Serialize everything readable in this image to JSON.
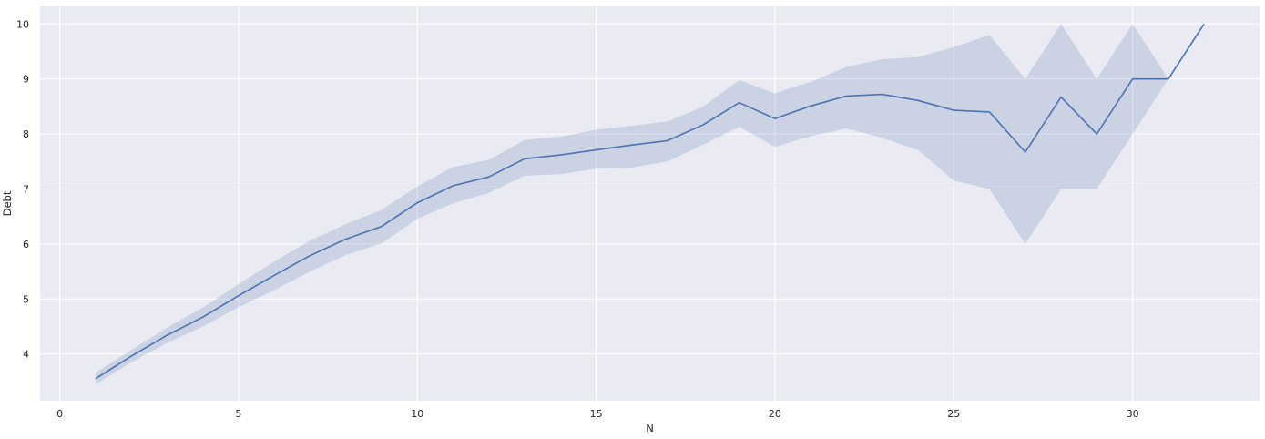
{
  "chart_data": {
    "type": "line",
    "title": "",
    "xlabel": "N",
    "ylabel": "Debt",
    "xlim": [
      -0.55,
      33.55
    ],
    "ylim": [
      3.15,
      10.32
    ],
    "xticks": [
      0,
      5,
      10,
      15,
      20,
      25,
      30
    ],
    "yticks": [
      4,
      5,
      6,
      7,
      8,
      9,
      10
    ],
    "grid": true,
    "legend": "none",
    "colors": {
      "background": "#eaeaf2",
      "grid": "#ffffff",
      "line": "#4c72b0",
      "band": "#4c72b0"
    },
    "series": [
      {
        "x": [
          1,
          2,
          3,
          4,
          5,
          6,
          7,
          8,
          9,
          10,
          11,
          12,
          13,
          14,
          15,
          16,
          17,
          18,
          19,
          20,
          21,
          22,
          23,
          24,
          25,
          26,
          27,
          28,
          29,
          30,
          31,
          32
        ],
        "y": [
          3.55,
          3.96,
          4.34,
          4.67,
          5.06,
          5.43,
          5.79,
          6.09,
          6.32,
          6.75,
          7.06,
          7.22,
          7.55,
          7.62,
          7.71,
          7.8,
          7.88,
          8.17,
          8.57,
          8.28,
          8.51,
          8.69,
          8.72,
          8.61,
          8.43,
          8.4,
          7.67,
          8.67,
          8.0,
          9.0,
          9.0,
          10.0
        ],
        "ci_low": [
          3.45,
          3.85,
          4.2,
          4.5,
          4.85,
          5.16,
          5.5,
          5.8,
          6.01,
          6.46,
          6.74,
          6.93,
          7.24,
          7.27,
          7.37,
          7.39,
          7.5,
          7.81,
          8.13,
          7.77,
          7.96,
          8.1,
          7.93,
          7.71,
          7.15,
          7.0,
          6.0,
          7.0,
          7.0,
          8.0,
          9.0,
          10.0
        ],
        "ci_high": [
          3.66,
          4.07,
          4.48,
          4.84,
          5.27,
          5.68,
          6.06,
          6.36,
          6.62,
          7.05,
          7.4,
          7.53,
          7.89,
          7.95,
          8.08,
          8.15,
          8.23,
          8.5,
          8.98,
          8.74,
          8.95,
          9.22,
          9.36,
          9.4,
          9.58,
          9.8,
          9.0,
          10.0,
          9.0,
          10.0,
          9.0,
          10.0
        ]
      }
    ]
  }
}
